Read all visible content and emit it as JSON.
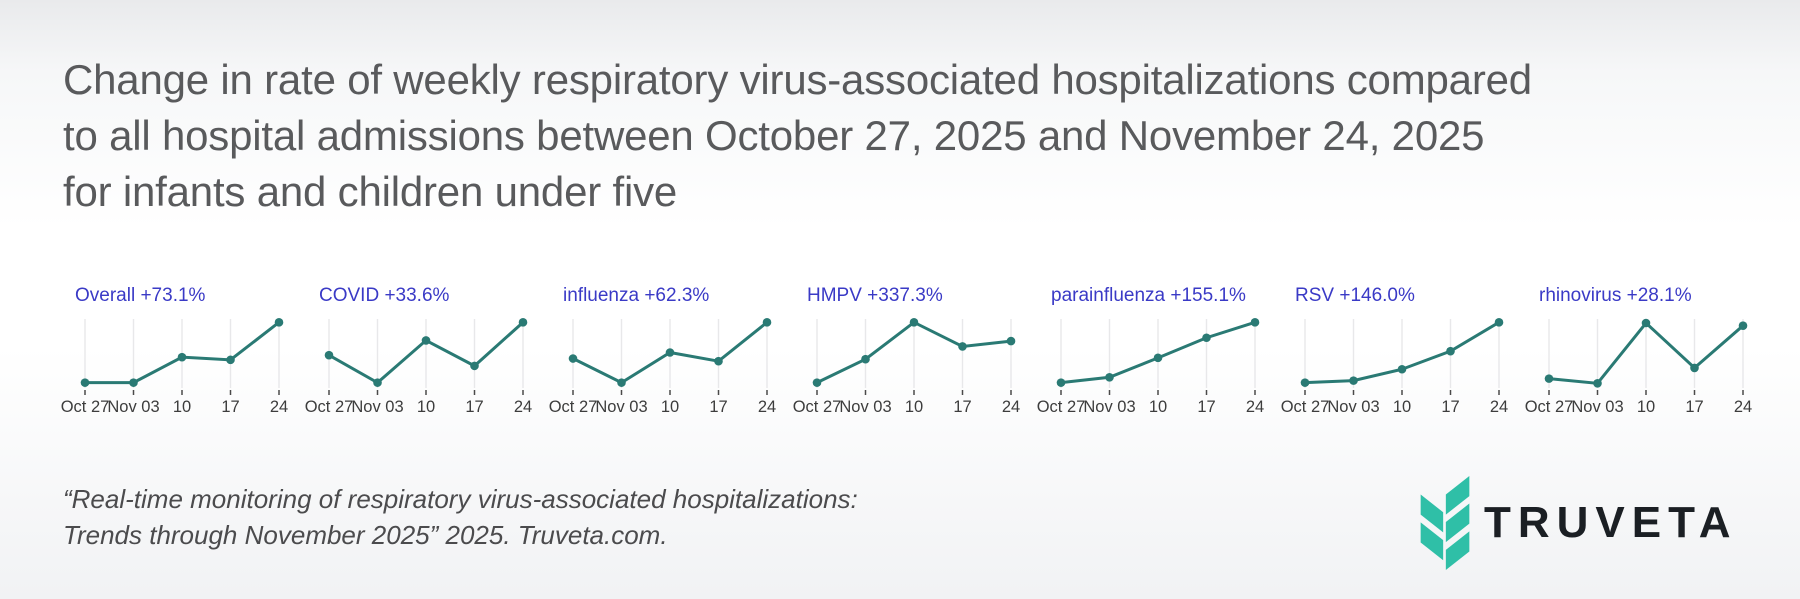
{
  "header": {
    "lines": [
      "Change in rate of weekly respiratory virus-associated hospitalizations compared",
      "to all hospital admissions between October 27, 2025 and November 24, 2025",
      "for infants and children under five"
    ]
  },
  "chart_data": {
    "type": "line",
    "layout": "seven small-multiple sparklines in one row; shared x categories; vertical gridlines on; no y axis labels",
    "categories": [
      "Oct 27",
      "Nov 03",
      "10",
      "17",
      "24"
    ],
    "series": [
      {
        "name": "Overall",
        "change_percent": "+73.1%",
        "label": "Overall +73.1%",
        "values_relative": [
          0.08,
          0.08,
          0.46,
          0.42,
          0.98
        ]
      },
      {
        "name": "COVID",
        "change_percent": "+33.6%",
        "label": "COVID +33.6%",
        "values_relative": [
          0.49,
          0.08,
          0.71,
          0.33,
          0.98
        ]
      },
      {
        "name": "influenza",
        "change_percent": "+62.3%",
        "label": "influenza +62.3%",
        "values_relative": [
          0.44,
          0.08,
          0.53,
          0.4,
          0.98
        ]
      },
      {
        "name": "HMPV",
        "change_percent": "+337.3%",
        "label": "HMPV +337.3%",
        "values_relative": [
          0.08,
          0.43,
          0.98,
          0.62,
          0.7
        ]
      },
      {
        "name": "parainfluenza",
        "change_percent": "+155.1%",
        "label": "parainfluenza +155.1%",
        "values_relative": [
          0.08,
          0.16,
          0.45,
          0.75,
          0.98
        ]
      },
      {
        "name": "RSV",
        "change_percent": "+146.0%",
        "label": "RSV +146.0%",
        "values_relative": [
          0.08,
          0.11,
          0.28,
          0.55,
          0.98
        ]
      },
      {
        "name": "rhinovirus",
        "change_percent": "+28.1%",
        "label": "rhinovirus +28.1%",
        "values_relative": [
          0.14,
          0.07,
          0.97,
          0.3,
          0.93
        ]
      }
    ],
    "note": "y values are unlabeled in the figure; values_relative are 0-1 estimates of each marker height within its panel"
  },
  "citation": {
    "lines": [
      "“Real-time monitoring of respiratory virus-associated hospitalizations:",
      "Trends through November 2025” 2025. Truveta.com."
    ]
  },
  "logo": {
    "wordmark": "TRUVETA"
  },
  "colors": {
    "panel_title_blue": "#3A3AC6",
    "line_teal": "#2A7A74",
    "gridline_gray": "#E8E8EA",
    "tick_gray": "#4A4A4A",
    "axis_label_gray": "#3D3D3D",
    "headline_gray": "#595A5C",
    "citation_gray": "#4B4B4D",
    "logo_teal": "#2FBFA7",
    "logo_text": "#1B1F24"
  }
}
